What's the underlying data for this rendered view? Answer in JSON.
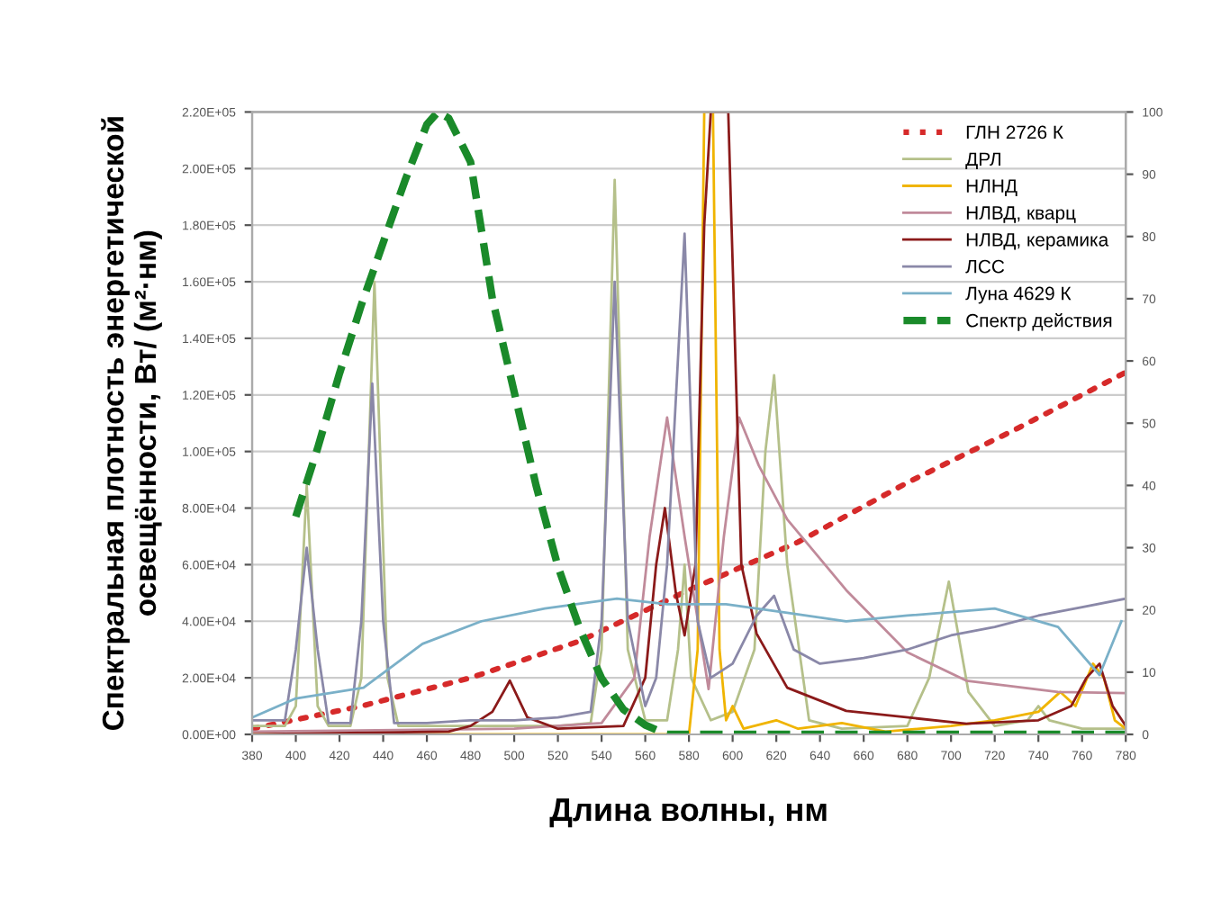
{
  "chart_data": {
    "type": "line",
    "xlabel": "Длина волны, нм",
    "ylabel": "Спектральная плотность энергетической\nосвещённости, Вт/ (м²·нм)",
    "xlim": [
      380,
      780
    ],
    "xticks": [
      380,
      400,
      420,
      440,
      460,
      480,
      500,
      520,
      540,
      560,
      580,
      600,
      620,
      640,
      660,
      680,
      700,
      720,
      740,
      760,
      780
    ],
    "ylim": [
      0,
      220000
    ],
    "yticks": [
      {
        "value": 0,
        "label": "0.00E+00"
      },
      {
        "value": 20000,
        "label": "2.00E+04"
      },
      {
        "value": 40000,
        "label": "4.00E+04"
      },
      {
        "value": 60000,
        "label": "6.00E+04"
      },
      {
        "value": 80000,
        "label": "8.00E+04"
      },
      {
        "value": 100000,
        "label": "1.00E+05"
      },
      {
        "value": 120000,
        "label": "1.20E+05"
      },
      {
        "value": 140000,
        "label": "1.40E+05"
      },
      {
        "value": 160000,
        "label": "1.60E+05"
      },
      {
        "value": 180000,
        "label": "1.80E+05"
      },
      {
        "value": 200000,
        "label": "2.00E+05"
      },
      {
        "value": 220000,
        "label": "2.20E+05"
      }
    ],
    "y2lim": [
      0,
      100
    ],
    "y2ticks": [
      0,
      10,
      20,
      30,
      40,
      50,
      60,
      70,
      80,
      90,
      100
    ],
    "grid": "y",
    "legend": "top right",
    "series": [
      {
        "name": "ГЛН 2726 К",
        "color": "#d62a2a",
        "line_style": "dotted",
        "x": [
          380,
          430,
          480,
          530,
          580,
          630,
          680,
          730,
          780
        ],
        "values": [
          2000,
          10000,
          20000,
          33000,
          51000,
          68000,
          89000,
          108000,
          128000
        ]
      },
      {
        "name": "ДРЛ",
        "color": "#b5c08a",
        "line_style": "solid",
        "x": [
          380,
          395,
          400,
          405,
          410,
          415,
          425,
          430,
          436,
          442,
          447,
          460,
          480,
          500,
          520,
          535,
          540,
          546,
          552,
          560,
          570,
          575,
          578,
          581,
          590,
          600,
          610,
          615,
          619,
          625,
          635,
          650,
          680,
          690,
          699,
          708,
          720,
          735,
          740,
          745,
          760,
          780
        ],
        "values": [
          3000,
          3000,
          10000,
          88000,
          10000,
          3000,
          3000,
          20000,
          160000,
          20000,
          3000,
          3000,
          3000,
          3000,
          3000,
          4000,
          30000,
          196000,
          30000,
          5000,
          5000,
          30000,
          60000,
          20000,
          5000,
          8000,
          30000,
          100000,
          127000,
          60000,
          5000,
          2000,
          3000,
          20000,
          54000,
          15000,
          3000,
          5000,
          10000,
          5000,
          2000,
          2000
        ]
      },
      {
        "name": "НЛНД",
        "color": "#f0b400",
        "line_style": "solid",
        "x": [
          380,
          570,
          580,
          584,
          587,
          591,
          594,
          597,
          600,
          605,
          620,
          630,
          650,
          670,
          700,
          720,
          740,
          750,
          757,
          765,
          770,
          775,
          780
        ],
        "values": [
          0,
          0,
          0,
          30000,
          220000,
          220000,
          30000,
          5000,
          10000,
          2000,
          5000,
          2000,
          4000,
          1000,
          3000,
          5000,
          8000,
          15000,
          10000,
          25000,
          20000,
          5000,
          2000
        ]
      },
      {
        "name": "НЛВД, кварц",
        "color": "#c08a9a",
        "line_style": "solid",
        "x": [
          380,
          500,
          540,
          555,
          562,
          570,
          578,
          589,
          596,
          603,
          612,
          625,
          652,
          680,
          707,
          749,
          780
        ],
        "values": [
          1000,
          2000,
          4000,
          20000,
          70000,
          112000,
          70000,
          16000,
          70000,
          112000,
          95000,
          76000,
          51000,
          29000,
          19000,
          15000,
          14600
        ]
      },
      {
        "name": "НЛВД, керамика",
        "color": "#8b1a1a",
        "line_style": "solid",
        "x": [
          380,
          470,
          480,
          490,
          498,
          506,
          520,
          550,
          560,
          565,
          569,
          574,
          578,
          583,
          587,
          590,
          598,
          604,
          611,
          625,
          652,
          707,
          740,
          755,
          762,
          768,
          774,
          780
        ],
        "values": [
          0,
          1000,
          3000,
          8000,
          19000,
          6000,
          2000,
          3000,
          20000,
          60000,
          80000,
          50000,
          35000,
          60000,
          180000,
          220000,
          220000,
          60000,
          35600,
          16500,
          8300,
          3800,
          5000,
          10000,
          20000,
          25000,
          10000,
          3000
        ]
      },
      {
        "name": "ЛСС",
        "color": "#8a88a8",
        "line_style": "solid",
        "x": [
          380,
          395,
          400,
          405,
          410,
          415,
          425,
          430,
          435,
          440,
          445,
          460,
          480,
          500,
          520,
          535,
          540,
          546,
          552,
          560,
          565,
          570,
          578,
          584,
          590,
          600,
          611,
          619,
          628,
          640,
          660,
          680,
          700,
          720,
          740,
          760,
          780
        ],
        "values": [
          5000,
          5000,
          30000,
          66000,
          30000,
          4000,
          4000,
          40000,
          124000,
          40000,
          4000,
          4000,
          5000,
          5000,
          6000,
          8000,
          40000,
          160000,
          40000,
          10000,
          20000,
          60000,
          177000,
          40000,
          20000,
          25000,
          42000,
          49000,
          30000,
          25000,
          27000,
          30000,
          35000,
          38000,
          42000,
          45000,
          48000
        ]
      },
      {
        "name": "Луна 4629 К",
        "color": "#7ab0c8",
        "line_style": "solid",
        "x": [
          380,
          400,
          431,
          458,
          485,
          514,
          547,
          570,
          597,
          625,
          652,
          680,
          720,
          749,
          768,
          778
        ],
        "values": [
          6000,
          12700,
          16500,
          32000,
          40000,
          44500,
          48000,
          46000,
          46000,
          43000,
          40000,
          42000,
          44500,
          38000,
          21000,
          40000
        ]
      },
      {
        "name": "Спектр действия",
        "color": "#1a8a2a",
        "line_style": "dashed",
        "axis": "y2",
        "x": [
          400,
          410,
          420,
          430,
          440,
          450,
          460,
          465,
          470,
          480,
          490,
          500,
          510,
          520,
          530,
          540,
          550,
          560,
          570,
          780
        ],
        "values": [
          35,
          46,
          58,
          69,
          79,
          89,
          98,
          100,
          99,
          92,
          70,
          55,
          40,
          27,
          17,
          9,
          4,
          1.5,
          0,
          0
        ]
      }
    ]
  }
}
